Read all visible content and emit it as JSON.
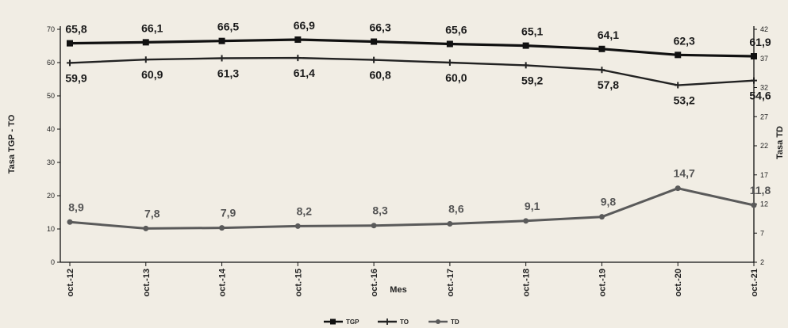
{
  "chart_data": {
    "type": "line",
    "xlabel": "Mes",
    "ylabel_left": "Tasa TGP - TO",
    "ylabel_right": "Tasa TD",
    "ylim_left": [
      0,
      70
    ],
    "ylim_right": [
      2,
      42
    ],
    "left_ticks": [
      "0",
      "10",
      "20",
      "30",
      "40",
      "50",
      "60",
      "70"
    ],
    "right_ticks": [
      "2",
      "7",
      "12",
      "17",
      "22",
      "27",
      "32",
      "37",
      "42"
    ],
    "x_ticks": [
      "oct.-12",
      "oct.-13",
      "oct.-14",
      "oct.-15",
      "oct.-16",
      "oct.-17",
      "oct.-18",
      "oct.-19",
      "oct.-20",
      "oct.-21"
    ],
    "legend": [
      "TGP",
      "TO",
      "TD"
    ],
    "grid": false,
    "series": [
      {
        "name": "TGP",
        "axis": "left",
        "color": "#111111",
        "x": [
          "oct.-12",
          "oct.-13",
          "oct.-14",
          "oct.-15",
          "oct.-16",
          "oct.-17",
          "oct.-18",
          "oct.-19",
          "oct.-20",
          "oct.-21"
        ],
        "values": [
          65.8,
          66.1,
          66.5,
          66.9,
          66.3,
          65.6,
          65.1,
          64.1,
          62.3,
          61.9
        ],
        "labels": [
          "65,8",
          "66,1",
          "66,5",
          "66,9",
          "66,3",
          "65,6",
          "65,1",
          "64,1",
          "62,3",
          "61,9"
        ]
      },
      {
        "name": "TO",
        "axis": "left",
        "color": "#222222",
        "x": [
          "oct.-12",
          "oct.-13",
          "oct.-14",
          "oct.-15",
          "oct.-16",
          "oct.-17",
          "oct.-18",
          "oct.-19",
          "oct.-20",
          "oct.-21"
        ],
        "values": [
          59.9,
          60.9,
          61.3,
          61.4,
          60.8,
          60.0,
          59.2,
          57.8,
          53.2,
          54.6
        ],
        "labels": [
          "59,9",
          "60,9",
          "61,3",
          "61,4",
          "60,8",
          "60,0",
          "59,2",
          "57,8",
          "53,2",
          "54,6"
        ]
      },
      {
        "name": "TD",
        "axis": "right",
        "color": "#5a5a5a",
        "x": [
          "oct.-12",
          "oct.-13",
          "oct.-14",
          "oct.-15",
          "oct.-16",
          "oct.-17",
          "oct.-18",
          "oct.-19",
          "oct.-20",
          "oct.-21"
        ],
        "values": [
          8.9,
          7.8,
          7.9,
          8.2,
          8.3,
          8.6,
          9.1,
          9.8,
          14.7,
          11.8
        ],
        "labels": [
          "8,9",
          "7,8",
          "7,9",
          "8,2",
          "8,3",
          "8,6",
          "9,1",
          "9,8",
          "14,7",
          "11,8"
        ]
      }
    ]
  }
}
